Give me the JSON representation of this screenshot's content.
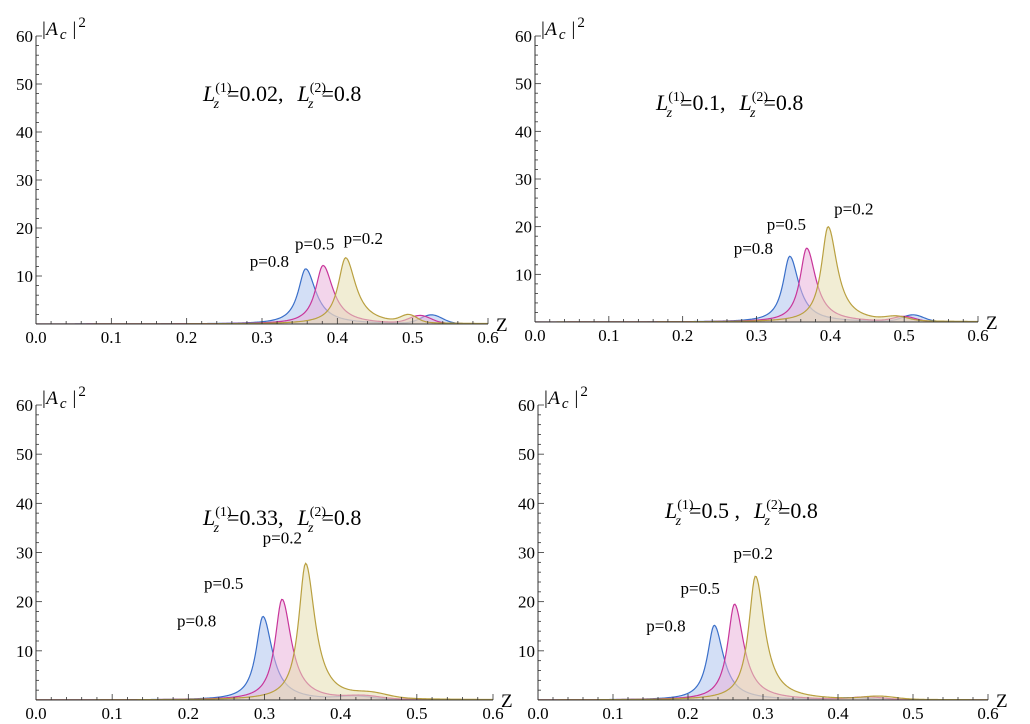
{
  "chart_data": [
    {
      "type": "area",
      "ylabel_base": "|A",
      "ylabel_sub": "c",
      "ylabel_tail": "|",
      "ylabel_sup": "2",
      "xlabel": "Z",
      "xlim": [
        0,
        0.6
      ],
      "ylim": [
        0,
        60
      ],
      "xticks": [
        "0.0",
        "0.1",
        "0.2",
        "0.3",
        "0.4",
        "0.5",
        "0.6"
      ],
      "yticks": [
        "10",
        "20",
        "30",
        "40",
        "50",
        "60"
      ],
      "annotation": {
        "l1_sup": "(1)",
        "l1_value": "=0.02,",
        "l2_sup": "(2)",
        "l2_value": "=0.8",
        "base": "L",
        "sub": "z"
      },
      "series": [
        {
          "name": "p=0.8",
          "color": "#3a6fc9",
          "fill": "#aec4ef",
          "peak_z": 0.358,
          "peak_h": 11.5,
          "width": 0.012,
          "secondary": {
            "z": 0.525,
            "h": 1.8,
            "w": 0.02
          }
        },
        {
          "name": "p=0.5",
          "color": "#c8359a",
          "fill": "#eab3da",
          "peak_z": 0.381,
          "peak_h": 12.2,
          "width": 0.012,
          "secondary": {
            "z": 0.51,
            "h": 1.6,
            "w": 0.02
          }
        },
        {
          "name": "p=0.2",
          "color": "#b9a040",
          "fill": "#e6deb0",
          "peak_z": 0.411,
          "peak_h": 13.8,
          "width": 0.012,
          "secondary": {
            "z": 0.495,
            "h": 1.5,
            "w": 0.015
          }
        }
      ]
    },
    {
      "type": "area",
      "ylabel_base": "|A",
      "ylabel_sub": "c",
      "ylabel_tail": "|",
      "ylabel_sup": "2",
      "xlabel": "Z",
      "xlim": [
        0,
        0.6
      ],
      "ylim": [
        0,
        60
      ],
      "xticks": [
        "0.0",
        "0.1",
        "0.2",
        "0.3",
        "0.4",
        "0.5",
        "0.6"
      ],
      "yticks": [
        "10",
        "20",
        "30",
        "40",
        "50",
        "60"
      ],
      "annotation": {
        "l1_sup": "(1)",
        "l1_value": "=0.1,",
        "l2_sup": "(2)",
        "l2_value": "=0.8",
        "base": "L",
        "sub": "z"
      },
      "series": [
        {
          "name": "p=0.8",
          "color": "#3a6fc9",
          "fill": "#aec4ef",
          "peak_z": 0.345,
          "peak_h": 13.8,
          "width": 0.011,
          "secondary": {
            "z": 0.512,
            "h": 1.4,
            "w": 0.02
          }
        },
        {
          "name": "p=0.5",
          "color": "#c8359a",
          "fill": "#eab3da",
          "peak_z": 0.368,
          "peak_h": 15.5,
          "width": 0.011,
          "secondary": {
            "z": 0.5,
            "h": 1.0,
            "w": 0.02
          }
        },
        {
          "name": "p=0.2",
          "color": "#b9a040",
          "fill": "#e6deb0",
          "peak_z": 0.397,
          "peak_h": 20.0,
          "width": 0.011,
          "secondary": {
            "z": 0.49,
            "h": 0.8,
            "w": 0.02
          }
        }
      ]
    },
    {
      "type": "area",
      "ylabel_base": "|A",
      "ylabel_sub": "c",
      "ylabel_tail": "|",
      "ylabel_sup": "2",
      "xlabel": "Z",
      "xlim": [
        0,
        0.6
      ],
      "ylim": [
        0,
        60
      ],
      "xticks": [
        "0.0",
        "0.1",
        "0.2",
        "0.3",
        "0.4",
        "0.5",
        "0.6"
      ],
      "yticks": [
        "10",
        "20",
        "30",
        "40",
        "50",
        "60"
      ],
      "annotation": {
        "l1_sup": "(1)",
        "l1_value": "=0.33,",
        "l2_sup": "(2)",
        "l2_value": "=0.8",
        "base": "L",
        "sub": "z"
      },
      "series": [
        {
          "name": "p=0.8",
          "color": "#3a6fc9",
          "fill": "#aec4ef",
          "peak_z": 0.298,
          "peak_h": 17.0,
          "width": 0.011,
          "secondary": {
            "z": 0.42,
            "h": 0.6,
            "w": 0.03
          }
        },
        {
          "name": "p=0.5",
          "color": "#c8359a",
          "fill": "#eab3da",
          "peak_z": 0.323,
          "peak_h": 20.5,
          "width": 0.011,
          "secondary": {
            "z": 0.43,
            "h": 0.6,
            "w": 0.03
          }
        },
        {
          "name": "p=0.2",
          "color": "#b9a040",
          "fill": "#e6deb0",
          "peak_z": 0.354,
          "peak_h": 27.8,
          "width": 0.011,
          "secondary": {
            "z": 0.44,
            "h": 0.9,
            "w": 0.03
          }
        }
      ]
    },
    {
      "type": "area",
      "ylabel_base": "|A",
      "ylabel_sub": "c",
      "ylabel_tail": "|",
      "ylabel_sup": "2",
      "xlabel": "Z",
      "xlim": [
        0,
        0.6
      ],
      "ylim": [
        0,
        60
      ],
      "xticks": [
        "0.0",
        "0.1",
        "0.2",
        "0.3",
        "0.4",
        "0.5",
        "0.6"
      ],
      "yticks": [
        "10",
        "20",
        "30",
        "40",
        "50",
        "60"
      ],
      "annotation": {
        "l1_sup": "(1)",
        "l1_value": "=0.5 ,",
        "l2_sup": "(2)",
        "l2_value": "=0.8",
        "base": "L",
        "sub": "z"
      },
      "series": [
        {
          "name": "p=0.8",
          "color": "#3a6fc9",
          "fill": "#aec4ef",
          "peak_z": 0.235,
          "peak_h": 15.2,
          "width": 0.011,
          "secondary": {
            "z": 0.42,
            "h": 0.4,
            "w": 0.03
          }
        },
        {
          "name": "p=0.5",
          "color": "#c8359a",
          "fill": "#eab3da",
          "peak_z": 0.262,
          "peak_h": 19.5,
          "width": 0.011,
          "secondary": {
            "z": 0.44,
            "h": 0.5,
            "w": 0.03
          }
        },
        {
          "name": "p=0.2",
          "color": "#b9a040",
          "fill": "#e6deb0",
          "peak_z": 0.29,
          "peak_h": 25.2,
          "width": 0.011,
          "secondary": {
            "z": 0.455,
            "h": 0.6,
            "w": 0.03
          }
        }
      ]
    }
  ]
}
